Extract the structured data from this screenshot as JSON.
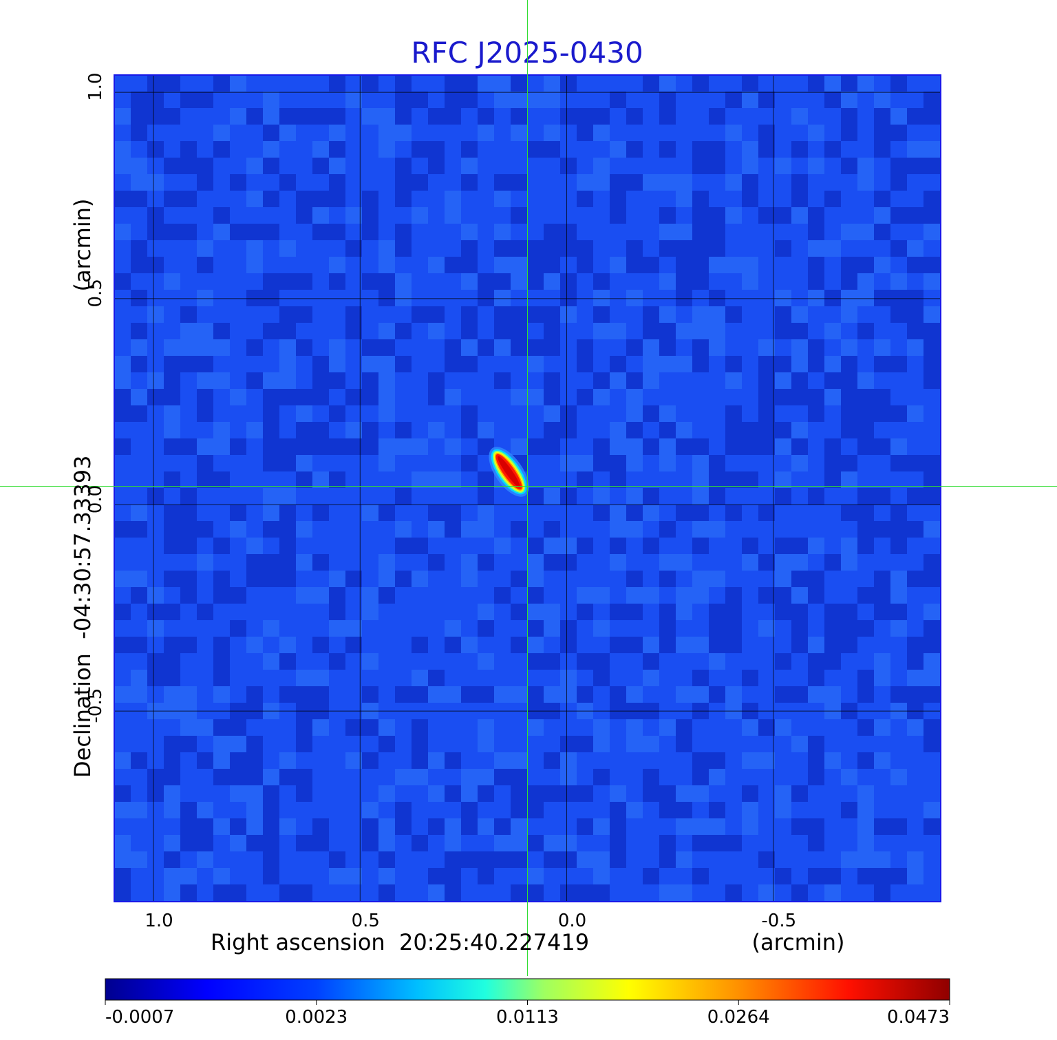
{
  "chart_data": {
    "type": "heatmap",
    "title": "RFC J2025-0430",
    "colormap": "jet",
    "x_axis": {
      "label": "Right ascension  20:25:40.227419",
      "unit_label": "(arcmin)",
      "ticks": [
        1.0,
        0.5,
        0.0,
        -0.5
      ],
      "tick_labels": [
        "1.0",
        "0.5",
        "0.0",
        "-0.5"
      ],
      "range": [
        1.095,
        -0.905
      ]
    },
    "y_axis": {
      "label": "Declination  -04:30:57.33393",
      "unit_label": "(arcmin)",
      "ticks": [
        1.0,
        0.5,
        0.0,
        -0.5
      ],
      "tick_labels": [
        "1.0",
        "0.5",
        "0.0",
        "-0.5"
      ],
      "range": [
        -0.962,
        1.042
      ]
    },
    "grid": true,
    "crosshair": {
      "x": 0.095,
      "y": 0.045,
      "color": "#33dd33"
    },
    "source": {
      "x": 0.14,
      "y": 0.08,
      "peak": 0.0473,
      "major_axis_arcmin": 0.11,
      "minor_axis_arcmin": 0.035,
      "position_angle_deg": -35
    },
    "colorbar": {
      "tick_values": [
        -0.0007,
        0.0023,
        0.0113,
        0.0264,
        0.0473
      ],
      "tick_labels": [
        "-0.0007",
        "0.0023",
        "0.0113",
        "0.0264",
        "0.0473"
      ],
      "min": -0.0007,
      "max": 0.0473
    }
  }
}
